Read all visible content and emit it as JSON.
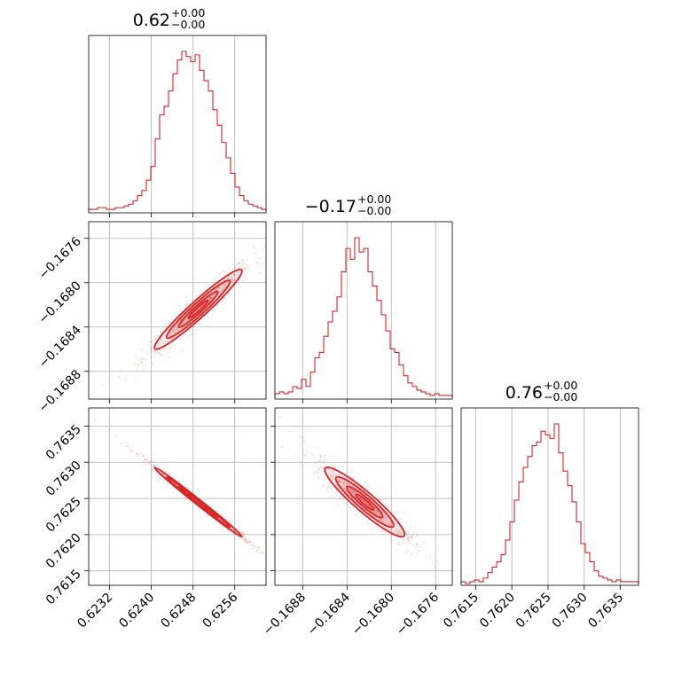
{
  "chart_data": {
    "type": "corner",
    "color": "#d62728",
    "parameters": [
      {
        "title": {
          "value": "0.62",
          "plus": "+0.00",
          "minus": "−0.00"
        },
        "range": [
          0.6228,
          0.6262
        ],
        "ticks": [
          0.6232,
          0.624,
          0.6248,
          0.6256
        ],
        "tick_labels": [
          "0.6232",
          "0.6240",
          "0.6248",
          "0.6256"
        ],
        "hist_counts": [
          1,
          1,
          2,
          2,
          1,
          1,
          2,
          2,
          3,
          4,
          6,
          9,
          12,
          18,
          26,
          42,
          56,
          61,
          70,
          80,
          88,
          93,
          90,
          87,
          91,
          82,
          76,
          70,
          59,
          50,
          40,
          31,
          22,
          14,
          9,
          6,
          4,
          3,
          2,
          1
        ]
      },
      {
        "title": {
          "value": "−0.17",
          "plus": "+0.00",
          "minus": "−0.00"
        },
        "range": [
          -0.16905,
          -0.16745
        ],
        "ticks": [
          -0.1688,
          -0.1684,
          -0.168,
          -0.1676
        ],
        "tick_labels": [
          "−0.1688",
          "−0.1684",
          "−0.1680",
          "−0.1676"
        ],
        "hist_counts": [
          2,
          3,
          2,
          3,
          6,
          5,
          10,
          6,
          14,
          22,
          25,
          34,
          42,
          48,
          56,
          70,
          83,
          77,
          89,
          81,
          83,
          70,
          62,
          54,
          46,
          37,
          27,
          25,
          18,
          12,
          8,
          6,
          4,
          3,
          2,
          1,
          2,
          1,
          1,
          1
        ]
      },
      {
        "title": {
          "value": "0.76",
          "plus": "+0.00",
          "minus": "−0.00"
        },
        "range": [
          0.7613,
          0.76375
        ],
        "ticks": [
          0.7615,
          0.762,
          0.7625,
          0.763,
          0.7635
        ],
        "tick_labels": [
          "0.7615",
          "0.7620",
          "0.7625",
          "0.7630",
          "0.7635"
        ],
        "hist_counts": [
          1,
          0,
          1,
          2,
          1,
          3,
          6,
          9,
          12,
          16,
          24,
          34,
          46,
          56,
          64,
          70,
          76,
          78,
          84,
          82,
          80,
          88,
          72,
          62,
          54,
          45,
          34,
          22,
          17,
          12,
          7,
          4,
          3,
          2,
          1,
          2,
          1,
          1,
          1,
          1
        ]
      }
    ],
    "pairs": [
      {
        "x": 0,
        "y": 1,
        "correlation": "positive",
        "center": [
          0.6249,
          -0.16824
        ],
        "sd": [
          0.00042,
          0.00018
        ],
        "rho": 0.96
      },
      {
        "x": 0,
        "y": 2,
        "correlation": "negative",
        "center": [
          0.6249,
          0.76245
        ],
        "sd": [
          0.00042,
          0.00024
        ],
        "rho": -0.995
      },
      {
        "x": 1,
        "y": 2,
        "correlation": "negative",
        "center": [
          -0.16824,
          0.76245
        ],
        "sd": [
          0.00018,
          0.00024
        ],
        "rho": -0.93
      }
    ]
  }
}
